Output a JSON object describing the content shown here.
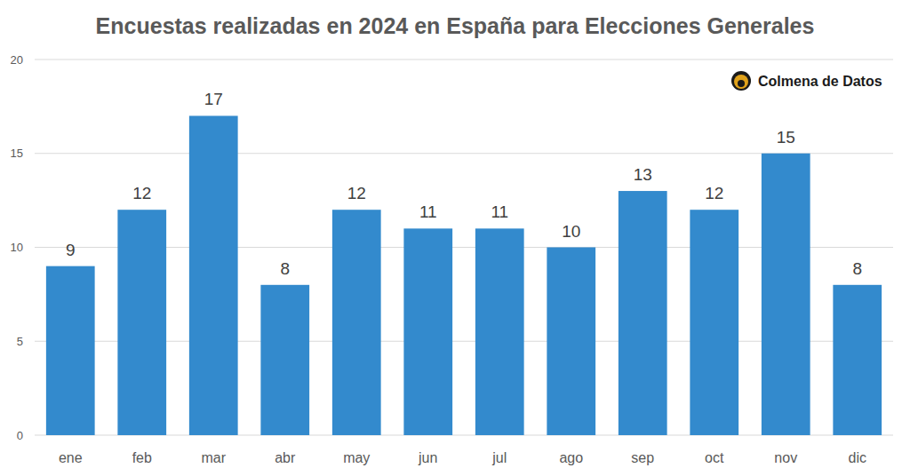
{
  "chart_data": {
    "type": "bar",
    "title": "Encuestas realizadas en 2024 en España para Elecciones Generales",
    "annotations": [
      "Colmena de Datos"
    ],
    "categories": [
      "ene",
      "feb",
      "mar",
      "abr",
      "may",
      "jun",
      "jul",
      "ago",
      "sep",
      "oct",
      "nov",
      "dic"
    ],
    "values": [
      9,
      12,
      17,
      8,
      12,
      11,
      11,
      10,
      13,
      12,
      15,
      8
    ],
    "color": "#338acd",
    "ylim": [
      0,
      20
    ],
    "yticks": [
      0,
      5,
      10,
      15,
      20
    ],
    "grid": true,
    "data_labels": true
  }
}
